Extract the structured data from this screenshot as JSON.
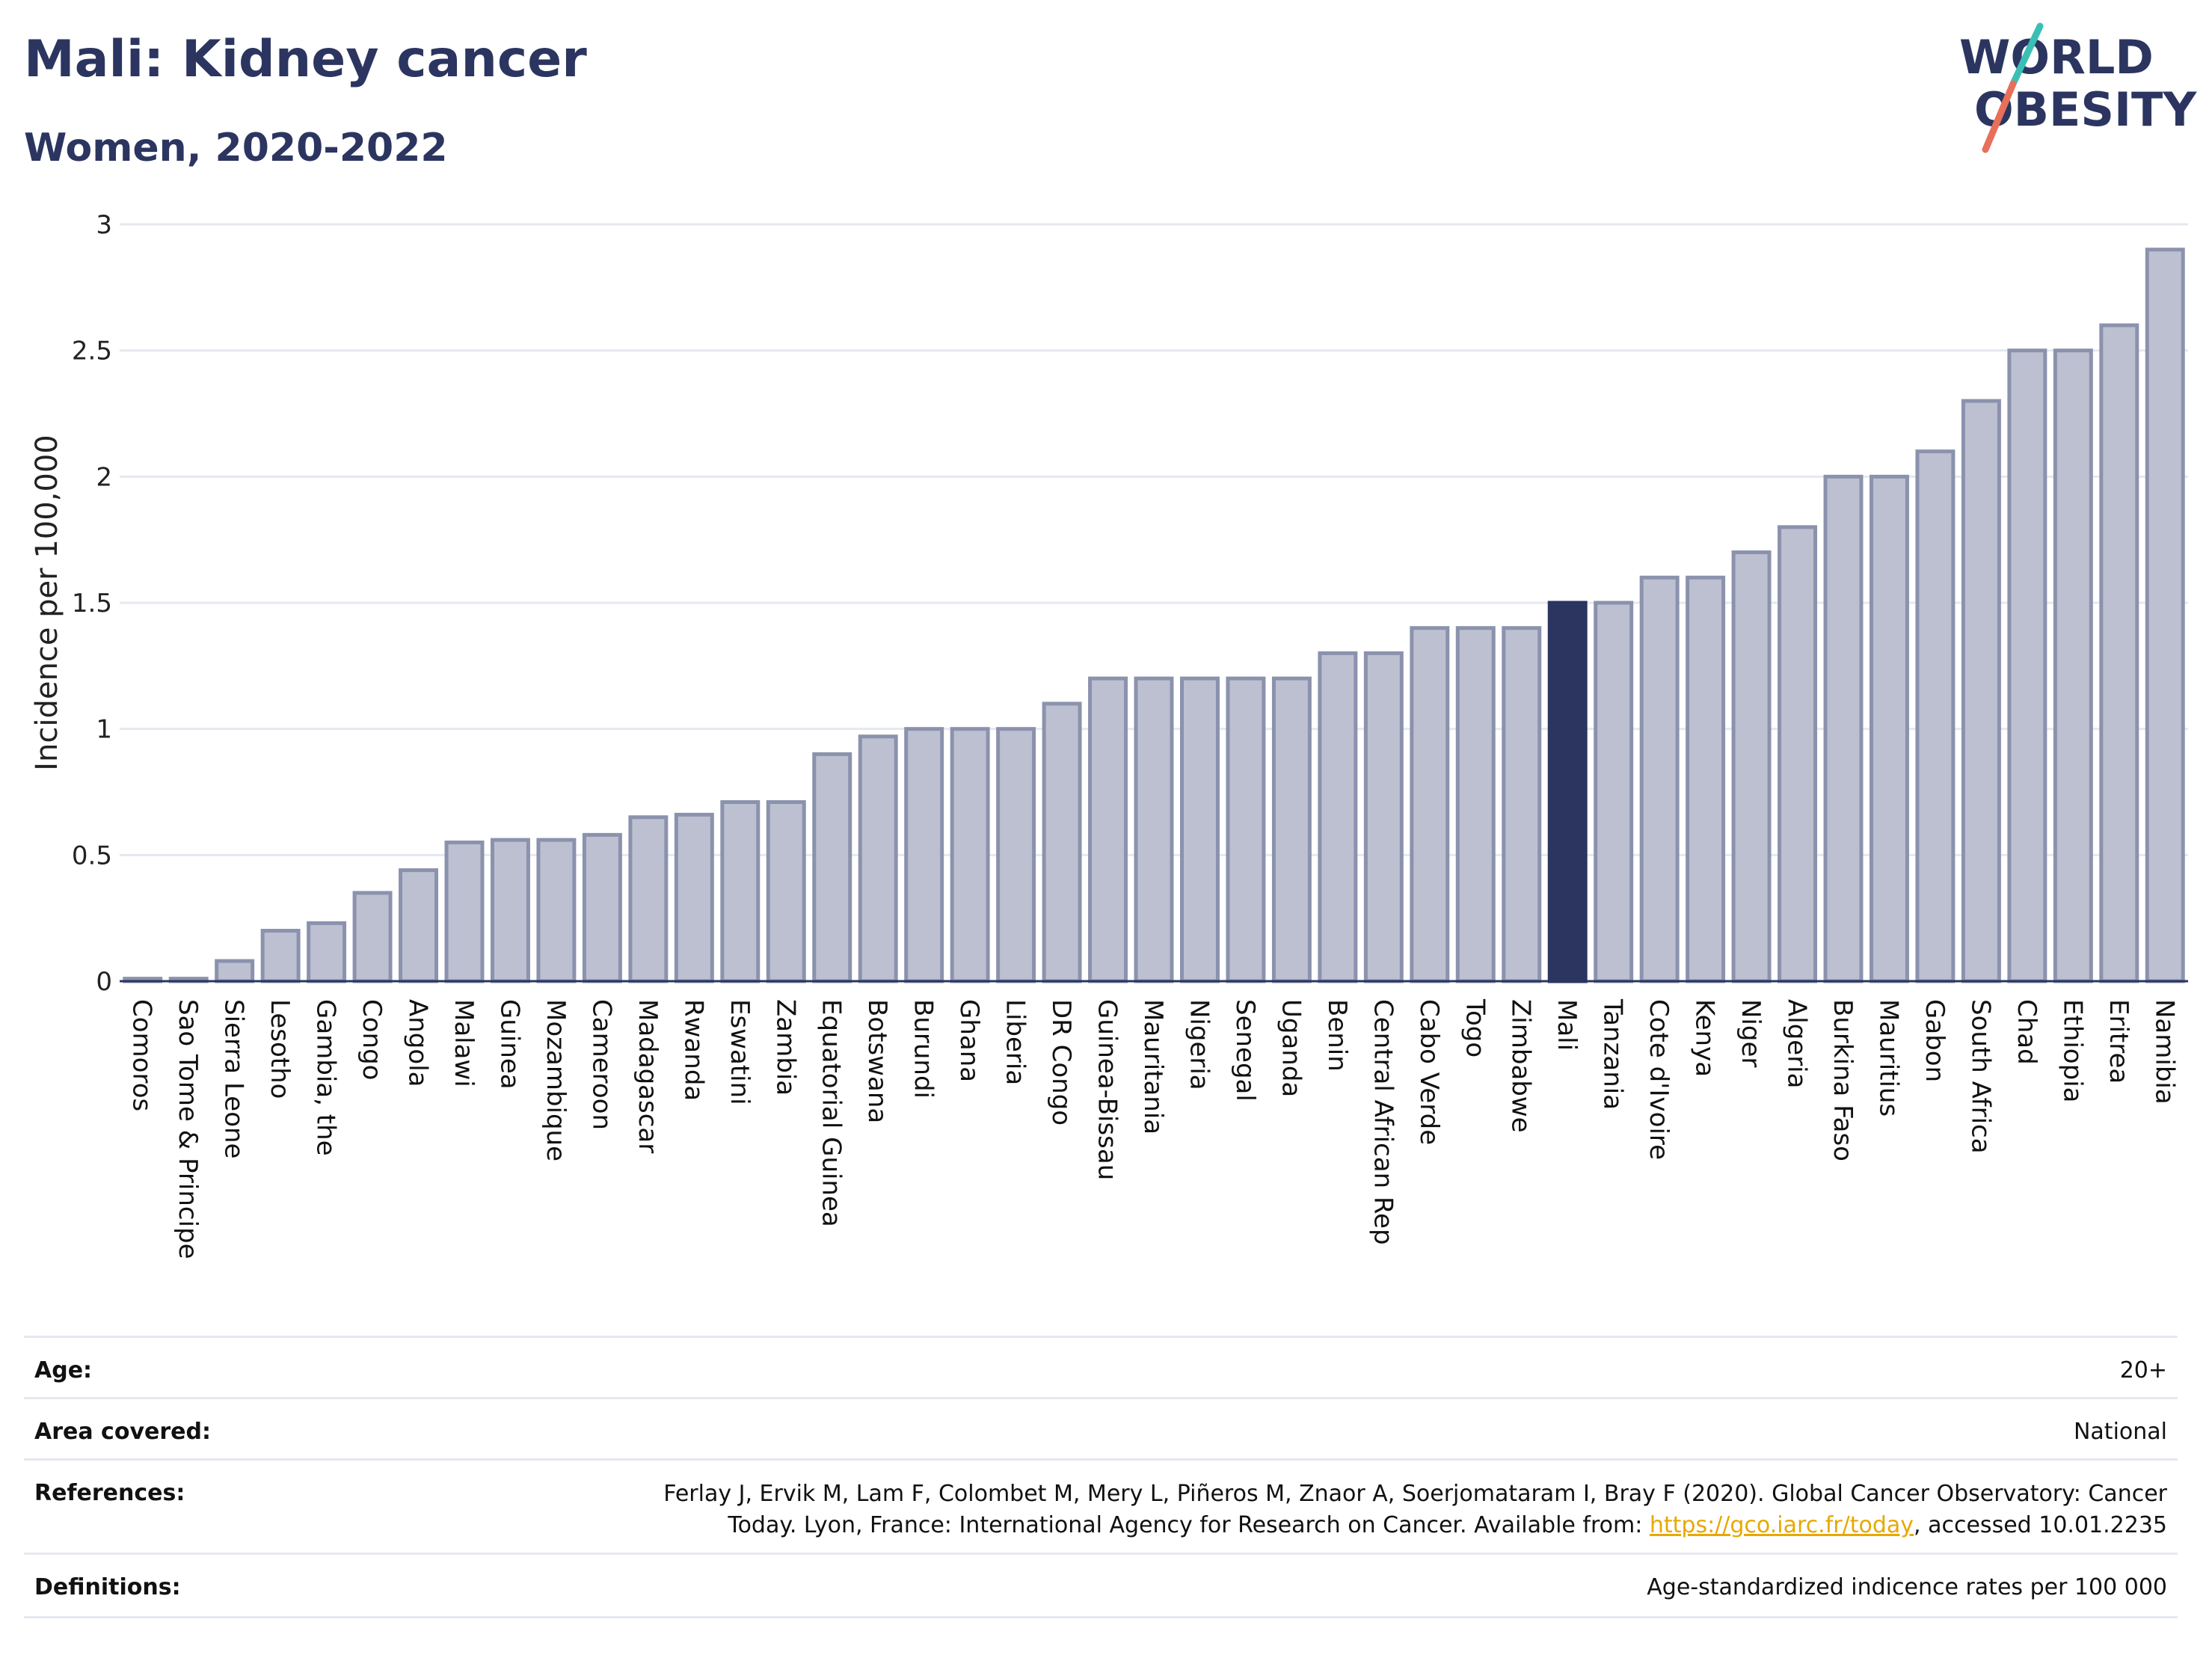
{
  "header": {
    "title": "Mali: Kidney cancer",
    "subtitle": "Women, 2020-2022"
  },
  "logo": {
    "line1": "WORLD",
    "line2": "OBESITY",
    "accent_teal": "#3bbfb5",
    "accent_coral": "#e8705a",
    "brand_navy": "#2b3560"
  },
  "colors": {
    "bar_fill": "#bcc0d0",
    "bar_stroke": "#8b92ad",
    "highlight_fill": "#2b3560",
    "grid": "#e6e8f0",
    "axis": "#2b3560"
  },
  "chart_data": {
    "type": "bar",
    "ylabel": "Incidence per 100,000",
    "ylim": [
      0,
      3
    ],
    "yticks": [
      0,
      0.5,
      1,
      1.5,
      2,
      2.5,
      3
    ],
    "ytick_labels": [
      "0",
      "0.5",
      "1",
      "1.5",
      "2",
      "2.5",
      "3"
    ],
    "grid": true,
    "highlight": "Mali",
    "categories": [
      "Comoros",
      "Sao Tome & Principe",
      "Sierra Leone",
      "Lesotho",
      "Gambia, the",
      "Congo",
      "Angola",
      "Malawi",
      "Guinea",
      "Mozambique",
      "Cameroon",
      "Madagascar",
      "Rwanda",
      "Eswatini",
      "Zambia",
      "Equatorial Guinea",
      "Botswana",
      "Burundi",
      "Ghana",
      "Liberia",
      "DR Congo",
      "Guinea-Bissau",
      "Mauritania",
      "Nigeria",
      "Senegal",
      "Uganda",
      "Benin",
      "Central African Rep",
      "Cabo Verde",
      "Togo",
      "Zimbabwe",
      "Mali",
      "Tanzania",
      "Cote d'Ivoire",
      "Kenya",
      "Niger",
      "Algeria",
      "Burkina Faso",
      "Mauritius",
      "Gabon",
      "South Africa",
      "Chad",
      "Ethiopia",
      "Eritrea",
      "Namibia"
    ],
    "values": [
      0.01,
      0.01,
      0.08,
      0.2,
      0.23,
      0.35,
      0.44,
      0.55,
      0.56,
      0.56,
      0.58,
      0.65,
      0.66,
      0.71,
      0.71,
      0.9,
      0.97,
      1.0,
      1.0,
      1.0,
      1.1,
      1.2,
      1.2,
      1.2,
      1.2,
      1.2,
      1.3,
      1.3,
      1.4,
      1.4,
      1.4,
      1.5,
      1.5,
      1.6,
      1.6,
      1.7,
      1.8,
      2.0,
      2.0,
      2.1,
      2.3,
      2.5,
      2.5,
      2.6,
      2.9
    ]
  },
  "info": {
    "age_label": "Age:",
    "age_value": "20+",
    "area_label": "Area covered:",
    "area_value": "National",
    "references_label": "References:",
    "references_line1": "Ferlay J, Ervik M, Lam F, Colombet M, Mery L, Piñeros M, Znaor A, Soerjomataram I, Bray F (2020). Global Cancer Observatory: Cancer",
    "references_line2_pre": "Today. Lyon, France: International Agency for Research on Cancer. Available from: ",
    "references_link": "https://gco.iarc.fr/today",
    "references_line2_post": ", accessed 10.01.2235",
    "definitions_label": "Definitions:",
    "definitions_value": "Age-standardized indicence rates per 100 000"
  }
}
